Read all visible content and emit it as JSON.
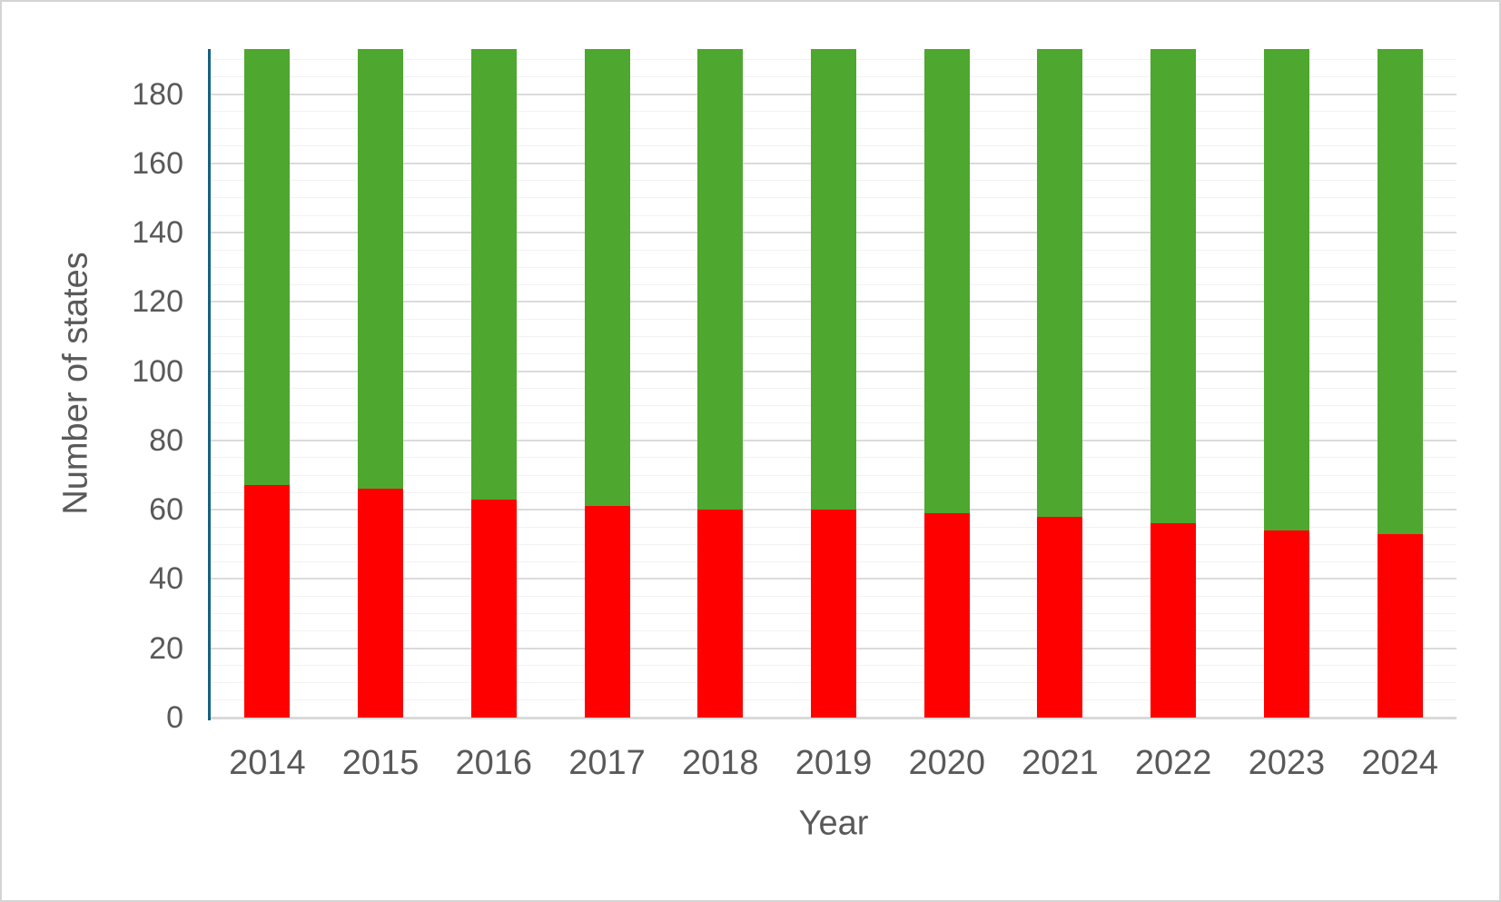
{
  "chart_data": {
    "type": "bar",
    "variant": "stacked-column",
    "title": "",
    "xlabel": "Year",
    "ylabel": "Number of states",
    "categories": [
      "2014",
      "2015",
      "2016",
      "2017",
      "2018",
      "2019",
      "2020",
      "2021",
      "2022",
      "2023",
      "2024"
    ],
    "series": [
      {
        "name": "red-bottom-segment",
        "color": "#fe0000",
        "values": [
          67,
          66,
          63,
          61,
          60,
          60,
          59,
          58,
          56,
          54,
          53
        ]
      },
      {
        "name": "green-top-segment",
        "color": "#4ea72e",
        "values": [
          126,
          127,
          130,
          132,
          133,
          133,
          134,
          135,
          137,
          139,
          140
        ]
      }
    ],
    "stack_total": 193,
    "ylim": [
      0,
      193
    ],
    "yticks": [
      0,
      20,
      40,
      60,
      80,
      100,
      120,
      140,
      160,
      180
    ],
    "grid": {
      "minor_interval": 5,
      "major_interval": 20,
      "minor_color": "#f2f2f2",
      "major_color": "#dbdbdb"
    },
    "legend_position": "none"
  },
  "colors": {
    "background": "#ffffff",
    "frame_border": "#d4d4d4",
    "axis_line": "#156082",
    "baseline": "#d9d9d9",
    "label_text": "#595959"
  }
}
